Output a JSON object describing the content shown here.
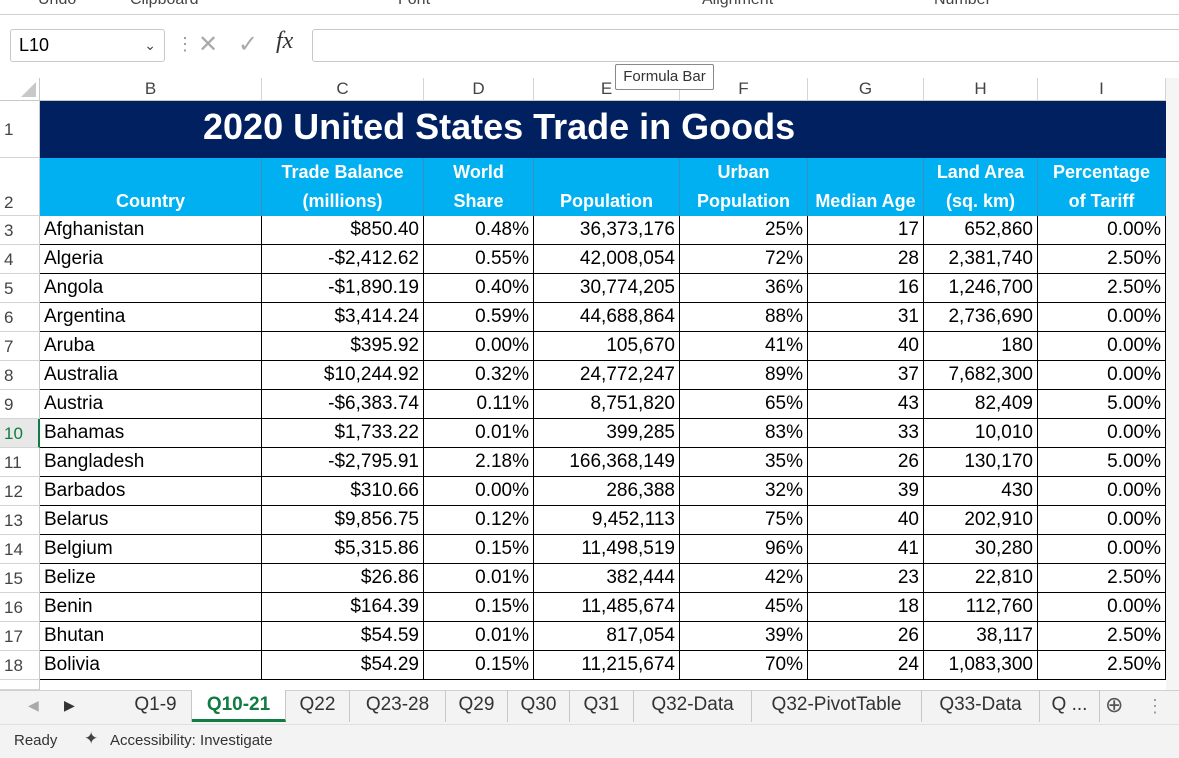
{
  "ribbon": {
    "groups": [
      "Undo",
      "Clipboard",
      "Font",
      "Alignment",
      "Number"
    ]
  },
  "formula_bar": {
    "name_box": "L10",
    "fx": "fx",
    "tooltip": "Formula Bar"
  },
  "table": {
    "columns": [
      "B",
      "C",
      "D",
      "E",
      "F",
      "G",
      "H",
      "I"
    ],
    "row_numbers": [
      "1",
      "2",
      "3",
      "4",
      "5",
      "6",
      "7",
      "8",
      "9",
      "10",
      "11",
      "12",
      "13",
      "14",
      "15",
      "16",
      "17",
      "18"
    ],
    "title": "2020 United States Trade in Goods",
    "headers": [
      "Country",
      "Trade Balance\n(millions)",
      "World\nShare",
      "Population",
      "Urban\nPopulation",
      "Median Age",
      "Land Area\n(sq. km)",
      "Percentage\nof Tariff"
    ],
    "rows": [
      [
        "Afghanistan",
        "$850.40",
        "0.48%",
        "36,373,176",
        "25%",
        "17",
        "652,860",
        "0.00%"
      ],
      [
        "Algeria",
        "-$2,412.62",
        "0.55%",
        "42,008,054",
        "72%",
        "28",
        "2,381,740",
        "2.50%"
      ],
      [
        "Angola",
        "-$1,890.19",
        "0.40%",
        "30,774,205",
        "36%",
        "16",
        "1,246,700",
        "2.50%"
      ],
      [
        "Argentina",
        "$3,414.24",
        "0.59%",
        "44,688,864",
        "88%",
        "31",
        "2,736,690",
        "0.00%"
      ],
      [
        "Aruba",
        "$395.92",
        "0.00%",
        "105,670",
        "41%",
        "40",
        "180",
        "0.00%"
      ],
      [
        "Australia",
        "$10,244.92",
        "0.32%",
        "24,772,247",
        "89%",
        "37",
        "7,682,300",
        "0.00%"
      ],
      [
        "Austria",
        "-$6,383.74",
        "0.11%",
        "8,751,820",
        "65%",
        "43",
        "82,409",
        "5.00%"
      ],
      [
        "Bahamas",
        "$1,733.22",
        "0.01%",
        "399,285",
        "83%",
        "33",
        "10,010",
        "0.00%"
      ],
      [
        "Bangladesh",
        "-$2,795.91",
        "2.18%",
        "166,368,149",
        "35%",
        "26",
        "130,170",
        "5.00%"
      ],
      [
        "Barbados",
        "$310.66",
        "0.00%",
        "286,388",
        "32%",
        "39",
        "430",
        "0.00%"
      ],
      [
        "Belarus",
        "$9,856.75",
        "0.12%",
        "9,452,113",
        "75%",
        "40",
        "202,910",
        "0.00%"
      ],
      [
        "Belgium",
        "$5,315.86",
        "0.15%",
        "11,498,519",
        "96%",
        "41",
        "30,280",
        "0.00%"
      ],
      [
        "Belize",
        "$26.86",
        "0.01%",
        "382,444",
        "42%",
        "23",
        "22,810",
        "2.50%"
      ],
      [
        "Benin",
        "$164.39",
        "0.15%",
        "11,485,674",
        "45%",
        "18",
        "112,760",
        "0.00%"
      ],
      [
        "Bhutan",
        "$54.59",
        "0.01%",
        "817,054",
        "39%",
        "26",
        "38,117",
        "2.50%"
      ],
      [
        "Bolivia",
        "$54.29",
        "0.15%",
        "11,215,674",
        "70%",
        "24",
        "1,083,300",
        "2.50%"
      ]
    ]
  },
  "sheet_tabs": {
    "tabs": [
      "Q1-9",
      "Q10-21",
      "Q22",
      "Q23-28",
      "Q29",
      "Q30",
      "Q31",
      "Q32-Data",
      "Q32-PivotTable",
      "Q33-Data",
      "Q ..."
    ],
    "active": 1
  },
  "status_bar": {
    "ready": "Ready",
    "accessibility": "Accessibility: Investigate"
  }
}
